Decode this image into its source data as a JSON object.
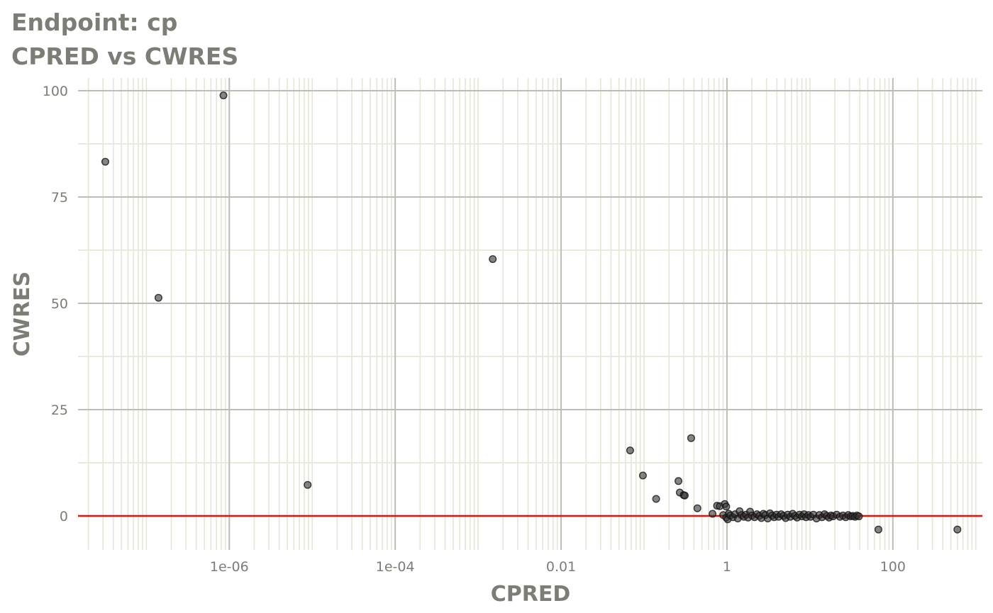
{
  "chart_data": {
    "type": "scatter",
    "title": "Endpoint:  cp",
    "subtitle": "CPRED vs CWRES",
    "xlabel": "CPRED",
    "ylabel": "CWRES",
    "x_scale": "log10",
    "xlim": [
      1.5e-08,
      1200
    ],
    "ylim": [
      -8,
      103
    ],
    "x_ticks": [
      {
        "value": 1e-06,
        "label": "1e-06"
      },
      {
        "value": 0.0001,
        "label": "1e-04"
      },
      {
        "value": 0.01,
        "label": "0.01"
      },
      {
        "value": 1,
        "label": "1"
      },
      {
        "value": 100,
        "label": "100"
      }
    ],
    "y_ticks": [
      {
        "value": 0,
        "label": "0"
      },
      {
        "value": 25,
        "label": "25"
      },
      {
        "value": 50,
        "label": "50"
      },
      {
        "value": 75,
        "label": "75"
      },
      {
        "value": 100,
        "label": "100"
      }
    ],
    "reference_line": {
      "y": 0,
      "color": "#e8120c"
    },
    "point_color": "#333333",
    "grid": true,
    "legend": "none",
    "points": [
      {
        "x": 3.2e-08,
        "y": 83.3
      },
      {
        "x": 1.4e-07,
        "y": 51.3
      },
      {
        "x": 8.5e-07,
        "y": 98.9
      },
      {
        "x": 8.8e-06,
        "y": 7.3
      },
      {
        "x": 0.0015,
        "y": 60.4
      },
      {
        "x": 0.068,
        "y": 15.4
      },
      {
        "x": 0.097,
        "y": 9.5
      },
      {
        "x": 0.14,
        "y": 4.0
      },
      {
        "x": 0.26,
        "y": 8.2
      },
      {
        "x": 0.27,
        "y": 5.5
      },
      {
        "x": 0.3,
        "y": 4.9
      },
      {
        "x": 0.31,
        "y": 4.8
      },
      {
        "x": 0.37,
        "y": 18.3
      },
      {
        "x": 0.44,
        "y": 1.8
      },
      {
        "x": 0.67,
        "y": 0.5
      },
      {
        "x": 0.76,
        "y": 2.4
      },
      {
        "x": 0.82,
        "y": 2.3
      },
      {
        "x": 0.94,
        "y": 2.8
      },
      {
        "x": 0.98,
        "y": 2.2
      },
      {
        "x": 0.9,
        "y": 0.2
      },
      {
        "x": 0.98,
        "y": -0.4
      },
      {
        "x": 1.02,
        "y": -0.8
      },
      {
        "x": 1.05,
        "y": 0.5
      },
      {
        "x": 1.1,
        "y": 0.1
      },
      {
        "x": 1.18,
        "y": -0.3
      },
      {
        "x": 1.25,
        "y": 0.4
      },
      {
        "x": 1.35,
        "y": -0.6
      },
      {
        "x": 1.42,
        "y": 1.1
      },
      {
        "x": 1.5,
        "y": 0.2
      },
      {
        "x": 1.6,
        "y": -0.2
      },
      {
        "x": 1.7,
        "y": 0.3
      },
      {
        "x": 1.8,
        "y": -0.4
      },
      {
        "x": 1.9,
        "y": 1.0
      },
      {
        "x": 2.0,
        "y": 0.1
      },
      {
        "x": 2.15,
        "y": -0.3
      },
      {
        "x": 2.3,
        "y": 0.4
      },
      {
        "x": 2.45,
        "y": 0.0
      },
      {
        "x": 2.6,
        "y": -0.5
      },
      {
        "x": 2.75,
        "y": 0.5
      },
      {
        "x": 2.9,
        "y": 0.2
      },
      {
        "x": 3.1,
        "y": -0.6
      },
      {
        "x": 3.3,
        "y": 0.6
      },
      {
        "x": 3.5,
        "y": 0.1
      },
      {
        "x": 3.7,
        "y": -0.3
      },
      {
        "x": 3.95,
        "y": 0.3
      },
      {
        "x": 4.2,
        "y": -0.2
      },
      {
        "x": 4.5,
        "y": 0.4
      },
      {
        "x": 4.8,
        "y": 0.0
      },
      {
        "x": 5.1,
        "y": -0.5
      },
      {
        "x": 5.4,
        "y": 0.3
      },
      {
        "x": 5.8,
        "y": -0.2
      },
      {
        "x": 6.2,
        "y": 0.5
      },
      {
        "x": 6.6,
        "y": 0.0
      },
      {
        "x": 7.0,
        "y": -0.4
      },
      {
        "x": 7.5,
        "y": 0.3
      },
      {
        "x": 8.0,
        "y": -0.1
      },
      {
        "x": 8.5,
        "y": 0.4
      },
      {
        "x": 9.0,
        "y": -0.3
      },
      {
        "x": 9.6,
        "y": 0.2
      },
      {
        "x": 10.2,
        "y": -0.2
      },
      {
        "x": 11.0,
        "y": 0.3
      },
      {
        "x": 12.0,
        "y": -0.6
      },
      {
        "x": 13.0,
        "y": 0.2
      },
      {
        "x": 14.0,
        "y": -0.3
      },
      {
        "x": 15.0,
        "y": 0.4
      },
      {
        "x": 16.0,
        "y": 0.0
      },
      {
        "x": 17.0,
        "y": -0.4
      },
      {
        "x": 18.0,
        "y": 0.1
      },
      {
        "x": 19.0,
        "y": -0.1
      },
      {
        "x": 21.0,
        "y": 0.3
      },
      {
        "x": 23.0,
        "y": -0.2
      },
      {
        "x": 25.0,
        "y": 0.1
      },
      {
        "x": 27.0,
        "y": -0.3
      },
      {
        "x": 29.0,
        "y": 0.2
      },
      {
        "x": 31.0,
        "y": -0.1
      },
      {
        "x": 33.0,
        "y": 0.0
      },
      {
        "x": 35.0,
        "y": -0.2
      },
      {
        "x": 37.0,
        "y": 0.1
      },
      {
        "x": 39.0,
        "y": -0.1
      },
      {
        "x": 67.0,
        "y": -3.2
      },
      {
        "x": 600.0,
        "y": -3.2
      }
    ]
  }
}
